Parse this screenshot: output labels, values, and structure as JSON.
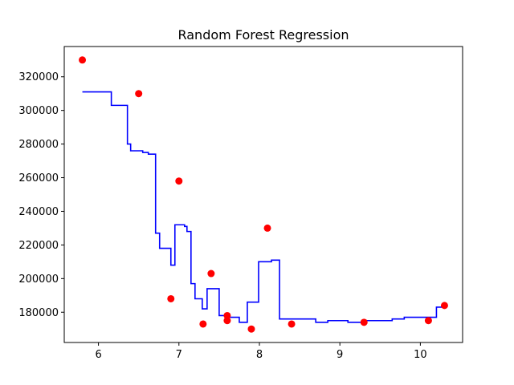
{
  "chart_data": {
    "type": "scatter",
    "title": "Random Forest Regression",
    "xlabel": "",
    "ylabel": "",
    "xlim": [
      5.575,
      10.525
    ],
    "ylim": [
      162000,
      338000
    ],
    "x_ticks": [
      6,
      7,
      8,
      9,
      10
    ],
    "x_tick_labels": [
      "6",
      "7",
      "8",
      "9",
      "10"
    ],
    "y_ticks": [
      180000,
      200000,
      220000,
      240000,
      260000,
      280000,
      300000,
      320000
    ],
    "y_tick_labels": [
      "180000",
      "200000",
      "220000",
      "240000",
      "260000",
      "280000",
      "300000",
      "320000"
    ],
    "grid": false,
    "legend": null,
    "colors": {
      "points": "#ff0000",
      "line": "#0000ff",
      "axes": "#000000"
    },
    "series": [
      {
        "kind": "scatter",
        "x": [
          5.8,
          6.5,
          6.9,
          7.0,
          7.3,
          7.4,
          7.6,
          7.6,
          7.9,
          8.1,
          8.4,
          9.3,
          10.1,
          10.3
        ],
        "y": [
          330000,
          310000,
          188000,
          258000,
          173000,
          203000,
          178000,
          175000,
          170000,
          230000,
          173000,
          174000,
          175000,
          184000
        ]
      },
      {
        "kind": "step-line",
        "x": [
          5.8,
          6.16,
          6.16,
          6.36,
          6.36,
          6.4,
          6.4,
          6.55,
          6.55,
          6.62,
          6.62,
          6.71,
          6.71,
          6.76,
          6.76,
          6.9,
          6.9,
          6.95,
          6.95,
          6.97,
          6.97,
          7.07,
          7.07,
          7.1,
          7.1,
          7.15,
          7.15,
          7.2,
          7.2,
          7.29,
          7.29,
          7.35,
          7.35,
          7.5,
          7.5,
          7.62,
          7.62,
          7.68,
          7.68,
          7.75,
          7.75,
          7.85,
          7.85,
          7.99,
          7.99,
          8.15,
          8.15,
          8.25,
          8.25,
          8.7,
          8.7,
          8.85,
          8.85,
          9.1,
          9.1,
          9.2,
          9.2,
          9.3,
          9.3,
          9.65,
          9.65,
          9.8,
          9.8,
          10.2,
          10.2,
          10.3
        ],
        "y": [
          311000,
          311000,
          303000,
          303000,
          280000,
          280000,
          276000,
          276000,
          275000,
          275000,
          274000,
          274000,
          227000,
          227000,
          218000,
          218000,
          208000,
          208000,
          232000,
          232000,
          232000,
          232000,
          231000,
          231000,
          228000,
          228000,
          197000,
          197000,
          188000,
          188000,
          182000,
          182000,
          194000,
          194000,
          178000,
          178000,
          177000,
          177000,
          177000,
          177000,
          174000,
          174000,
          186000,
          186000,
          210000,
          210000,
          211000,
          211000,
          176000,
          176000,
          174000,
          174000,
          175000,
          175000,
          174000,
          174000,
          174000,
          174000,
          175000,
          175000,
          176000,
          176000,
          177000,
          177000,
          183000,
          183000
        ]
      }
    ]
  }
}
